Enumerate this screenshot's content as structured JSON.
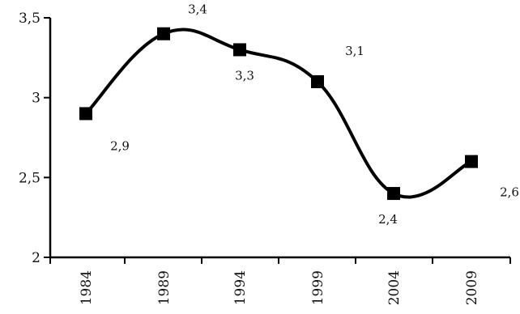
{
  "chart_data": {
    "type": "line",
    "categories": [
      "1984",
      "1989",
      "1994",
      "1999",
      "2004",
      "2009"
    ],
    "y_tick_labels": [
      "2",
      "2,5",
      "3",
      "3,5"
    ],
    "ylim": [
      2,
      3.5
    ],
    "grid": false,
    "legend": "none",
    "series": [
      {
        "values": [
          2.9,
          3.4,
          3.3,
          3.1,
          2.4,
          2.6
        ],
        "data_labels": [
          "2,9",
          "3,4",
          "3,3",
          "3,1",
          "2,4",
          "2,6"
        ],
        "color": "#000000",
        "marker": "square"
      }
    ]
  }
}
